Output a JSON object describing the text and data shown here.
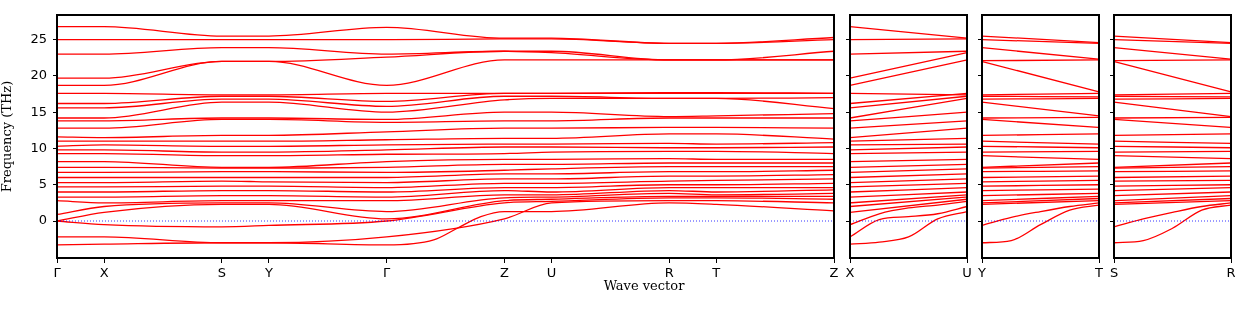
{
  "chart_data": [
    {
      "type": "line",
      "ylabel": "Frequency (THz)",
      "xlabel": "Wave vector",
      "categories": [
        "Γ",
        null,
        "X",
        null,
        null,
        null,
        null,
        "S",
        null,
        "Y",
        null,
        null,
        null,
        null,
        "Γ",
        null,
        null,
        null,
        null,
        "Z",
        null,
        "U",
        null,
        null,
        null,
        null,
        "R",
        null,
        "T",
        null,
        null,
        null,
        null,
        "Z"
      ],
      "ylim": [
        -5.1,
        28.4
      ],
      "yticks": [
        0,
        5,
        10,
        15,
        20,
        25
      ],
      "ref_lines": [
        {
          "axis": "y",
          "value": 0,
          "color": "#0000ff",
          "line_style": "dotted"
        }
      ],
      "series": [
        {
          "color": "#ff0000",
          "values": [
            -3.3,
            null,
            -3.2,
            null,
            null,
            null,
            null,
            -3.0,
            null,
            -3.0,
            null,
            null,
            null,
            null,
            -3.3,
            null,
            -2.6,
            -1.0,
            0.6,
            1.3,
            null,
            1.3,
            null,
            null,
            null,
            null,
            2.5,
            null,
            2.3,
            null,
            null,
            null,
            null,
            1.4
          ]
        },
        {
          "color": "#ff0000",
          "values": [
            -2.2,
            null,
            -2.2,
            null,
            null,
            null,
            null,
            -3.0,
            null,
            -3.0,
            null,
            null,
            null,
            null,
            -2.2,
            null,
            null,
            null,
            null,
            0.3,
            null,
            2.5,
            null,
            null,
            null,
            null,
            2.8,
            null,
            2.8,
            null,
            null,
            null,
            null,
            2.5
          ]
        },
        {
          "color": "#ff0000",
          "values": [
            0,
            null,
            -0.5,
            null,
            null,
            null,
            null,
            -0.8,
            null,
            -0.6,
            null,
            null,
            null,
            null,
            0,
            null,
            null,
            null,
            null,
            2.5,
            null,
            2.7,
            null,
            null,
            null,
            null,
            3.2,
            null,
            3.2,
            null,
            null,
            null,
            null,
            3.0
          ]
        },
        {
          "color": "#ff0000",
          "values": [
            0,
            null,
            1.2,
            null,
            null,
            null,
            null,
            2.3,
            null,
            2.3,
            null,
            null,
            null,
            null,
            0.3,
            null,
            null,
            null,
            null,
            2.8,
            null,
            3.0,
            null,
            null,
            null,
            null,
            3.4,
            null,
            3.4,
            null,
            null,
            null,
            null,
            3.4
          ]
        },
        {
          "color": "#ff0000",
          "values": [
            0.9,
            null,
            2.0,
            null,
            null,
            null,
            null,
            2.5,
            null,
            2.5,
            null,
            null,
            null,
            null,
            1.3,
            null,
            null,
            null,
            null,
            3.2,
            null,
            3.3,
            null,
            null,
            null,
            null,
            3.8,
            null,
            3.6,
            null,
            null,
            null,
            null,
            3.8
          ]
        },
        {
          "color": "#ff0000",
          "values": [
            2.8,
            null,
            2.5,
            null,
            null,
            null,
            null,
            2.8,
            null,
            2.8,
            null,
            null,
            null,
            null,
            2.8,
            null,
            null,
            null,
            null,
            3.6,
            null,
            3.6,
            null,
            null,
            null,
            null,
            4.2,
            null,
            4.0,
            null,
            null,
            null,
            null,
            4.3
          ]
        },
        {
          "color": "#ff0000",
          "values": [
            3.3,
            null,
            3.3,
            null,
            null,
            null,
            null,
            3.5,
            null,
            3.5,
            null,
            null,
            null,
            null,
            3.3,
            null,
            null,
            null,
            null,
            4.2,
            null,
            4.0,
            null,
            null,
            null,
            null,
            4.6,
            null,
            4.6,
            null,
            null,
            null,
            null,
            4.6
          ]
        },
        {
          "color": "#ff0000",
          "values": [
            4.0,
            null,
            4.0,
            null,
            null,
            null,
            null,
            4.2,
            null,
            4.2,
            null,
            null,
            null,
            null,
            4.0,
            null,
            null,
            null,
            null,
            4.6,
            null,
            4.6,
            null,
            null,
            null,
            null,
            5.0,
            null,
            5.0,
            null,
            null,
            null,
            null,
            5.2
          ]
        },
        {
          "color": "#ff0000",
          "values": [
            4.7,
            null,
            4.7,
            null,
            null,
            null,
            null,
            4.8,
            null,
            4.8,
            null,
            null,
            null,
            null,
            4.6,
            null,
            null,
            null,
            null,
            5.2,
            null,
            5.2,
            null,
            null,
            null,
            null,
            5.5,
            null,
            5.6,
            null,
            null,
            null,
            null,
            5.8
          ]
        },
        {
          "color": "#ff0000",
          "values": [
            5.3,
            null,
            5.3,
            null,
            null,
            null,
            null,
            5.5,
            null,
            5.4,
            null,
            null,
            null,
            null,
            5.3,
            null,
            null,
            null,
            null,
            5.8,
            null,
            5.8,
            null,
            null,
            null,
            null,
            6.2,
            null,
            6.2,
            null,
            null,
            null,
            null,
            6.4
          ]
        },
        {
          "color": "#ff0000",
          "values": [
            6.0,
            null,
            6.0,
            null,
            null,
            null,
            null,
            6.0,
            null,
            6.0,
            null,
            null,
            null,
            null,
            6.0,
            null,
            null,
            null,
            null,
            6.5,
            null,
            6.5,
            null,
            null,
            null,
            null,
            6.8,
            null,
            6.8,
            null,
            null,
            null,
            null,
            7.0
          ]
        },
        {
          "color": "#ff0000",
          "values": [
            6.7,
            null,
            6.7,
            null,
            null,
            null,
            null,
            6.8,
            null,
            6.8,
            null,
            null,
            null,
            null,
            6.7,
            null,
            null,
            null,
            null,
            7.0,
            null,
            7.2,
            null,
            null,
            null,
            null,
            7.5,
            null,
            7.5,
            null,
            null,
            null,
            null,
            7.5
          ]
        },
        {
          "color": "#ff0000",
          "values": [
            7.4,
            null,
            7.4,
            null,
            null,
            null,
            null,
            7.3,
            null,
            7.3,
            null,
            null,
            null,
            null,
            7.4,
            null,
            null,
            null,
            null,
            7.8,
            null,
            7.8,
            null,
            null,
            null,
            null,
            8.0,
            null,
            8.0,
            null,
            null,
            null,
            null,
            8.0
          ]
        },
        {
          "color": "#ff0000",
          "values": [
            8.2,
            null,
            8.2,
            null,
            null,
            null,
            null,
            7.4,
            null,
            7.4,
            null,
            null,
            null,
            null,
            8.2,
            null,
            null,
            null,
            null,
            8.5,
            null,
            8.5,
            null,
            null,
            null,
            null,
            8.6,
            null,
            8.5,
            null,
            null,
            null,
            null,
            8.5
          ]
        },
        {
          "color": "#ff0000",
          "values": [
            9.3,
            null,
            9.3,
            null,
            null,
            null,
            null,
            9.0,
            null,
            9.0,
            null,
            null,
            null,
            null,
            9.2,
            null,
            null,
            null,
            null,
            9.3,
            null,
            9.5,
            null,
            null,
            null,
            null,
            9.6,
            null,
            9.6,
            null,
            null,
            null,
            null,
            9.3
          ]
        },
        {
          "color": "#ff0000",
          "values": [
            9.8,
            null,
            9.8,
            null,
            null,
            null,
            null,
            9.5,
            null,
            9.5,
            null,
            null,
            null,
            null,
            9.8,
            null,
            null,
            null,
            null,
            10.2,
            null,
            10.2,
            null,
            null,
            null,
            null,
            10.1,
            null,
            10.1,
            null,
            null,
            null,
            null,
            10.2
          ]
        },
        {
          "color": "#ff0000",
          "values": [
            10.3,
            null,
            10.5,
            null,
            null,
            null,
            null,
            10.3,
            null,
            10.3,
            null,
            null,
            null,
            null,
            10.5,
            null,
            null,
            null,
            null,
            10.6,
            null,
            10.6,
            null,
            null,
            null,
            null,
            10.7,
            null,
            10.6,
            null,
            null,
            null,
            null,
            10.8
          ]
        },
        {
          "color": "#ff0000",
          "values": [
            11.0,
            null,
            11.0,
            null,
            null,
            null,
            null,
            11.0,
            null,
            11.0,
            null,
            null,
            null,
            null,
            11.2,
            null,
            null,
            null,
            null,
            11.4,
            null,
            11.4,
            null,
            null,
            null,
            null,
            12.0,
            null,
            12.0,
            null,
            null,
            null,
            null,
            11.3
          ]
        },
        {
          "color": "#ff0000",
          "values": [
            11.6,
            null,
            11.5,
            null,
            null,
            null,
            null,
            11.8,
            null,
            11.8,
            null,
            null,
            null,
            null,
            12.3,
            null,
            null,
            null,
            null,
            12.8,
            null,
            12.8,
            null,
            null,
            null,
            null,
            12.9,
            null,
            12.9,
            null,
            null,
            null,
            null,
            12.8
          ]
        },
        {
          "color": "#ff0000",
          "values": [
            12.8,
            null,
            12.8,
            null,
            null,
            null,
            null,
            14.0,
            null,
            14.0,
            null,
            null,
            null,
            null,
            13.6,
            null,
            null,
            null,
            null,
            13.8,
            null,
            13.8,
            null,
            null,
            null,
            null,
            14.2,
            null,
            14.2,
            null,
            null,
            null,
            null,
            14.2
          ]
        },
        {
          "color": "#ff0000",
          "values": [
            13.8,
            null,
            13.8,
            null,
            null,
            null,
            null,
            14.2,
            null,
            14.2,
            null,
            null,
            null,
            null,
            14.0,
            null,
            null,
            null,
            null,
            15.0,
            null,
            15.0,
            null,
            null,
            null,
            null,
            14.4,
            null,
            14.5,
            null,
            null,
            null,
            null,
            14.8
          ]
        },
        {
          "color": "#ff0000",
          "values": [
            14.2,
            null,
            14.2,
            null,
            null,
            null,
            null,
            16.4,
            null,
            16.4,
            null,
            null,
            null,
            null,
            15.0,
            null,
            null,
            null,
            null,
            16.7,
            null,
            16.9,
            null,
            null,
            null,
            null,
            16.9,
            null,
            16.9,
            null,
            null,
            null,
            null,
            15.5
          ]
        },
        {
          "color": "#ff0000",
          "values": [
            15.6,
            null,
            15.6,
            null,
            null,
            null,
            null,
            16.8,
            null,
            16.8,
            null,
            null,
            null,
            null,
            15.8,
            null,
            null,
            null,
            null,
            17.2,
            null,
            17.2,
            null,
            null,
            null,
            null,
            16.9,
            null,
            16.9,
            null,
            null,
            null,
            null,
            17.0
          ]
        },
        {
          "color": "#ff0000",
          "values": [
            16.2,
            null,
            16.2,
            null,
            null,
            null,
            null,
            17.2,
            null,
            17.2,
            null,
            null,
            null,
            null,
            16.5,
            null,
            null,
            null,
            null,
            17.6,
            null,
            17.6,
            null,
            null,
            null,
            null,
            17.6,
            null,
            17.6,
            null,
            null,
            null,
            null,
            17.6
          ]
        },
        {
          "color": "#ff0000",
          "values": [
            17.6,
            null,
            17.6,
            null,
            null,
            null,
            null,
            17.4,
            null,
            17.4,
            null,
            null,
            null,
            null,
            17.6,
            null,
            null,
            null,
            null,
            17.6,
            null,
            17.6,
            null,
            null,
            null,
            null,
            17.7,
            null,
            17.7,
            null,
            null,
            null,
            null,
            17.6
          ]
        },
        {
          "color": "#ff0000",
          "values": [
            18.7,
            null,
            18.7,
            null,
            null,
            null,
            null,
            22.0,
            null,
            22.0,
            null,
            null,
            null,
            null,
            18.7,
            null,
            null,
            null,
            null,
            22.2,
            null,
            22.2,
            null,
            null,
            null,
            null,
            22.2,
            null,
            22.2,
            null,
            null,
            null,
            null,
            22.2
          ]
        },
        {
          "color": "#ff0000",
          "values": [
            19.7,
            null,
            19.7,
            null,
            null,
            null,
            null,
            22.0,
            null,
            22.0,
            null,
            null,
            null,
            null,
            22.6,
            null,
            null,
            null,
            null,
            23.4,
            null,
            23.2,
            null,
            null,
            null,
            null,
            22.2,
            null,
            22.2,
            null,
            null,
            null,
            null,
            23.4
          ]
        },
        {
          "color": "#ff0000",
          "values": [
            23.0,
            null,
            23.0,
            null,
            null,
            null,
            null,
            23.9,
            null,
            23.9,
            null,
            null,
            null,
            null,
            23.0,
            null,
            null,
            null,
            null,
            23.4,
            null,
            23.4,
            null,
            null,
            null,
            null,
            22.2,
            null,
            22.2,
            null,
            null,
            null,
            null,
            22.2
          ]
        },
        {
          "color": "#ff0000",
          "values": [
            25.0,
            null,
            25.0,
            null,
            null,
            null,
            null,
            25.0,
            null,
            25.0,
            null,
            null,
            null,
            null,
            25.0,
            null,
            null,
            null,
            null,
            25.1,
            null,
            25.1,
            null,
            null,
            null,
            null,
            24.5,
            null,
            24.5,
            null,
            null,
            null,
            null,
            25.0
          ]
        },
        {
          "color": "#ff0000",
          "values": [
            26.8,
            null,
            26.8,
            null,
            null,
            null,
            null,
            25.5,
            null,
            25.5,
            null,
            null,
            null,
            null,
            26.7,
            null,
            null,
            null,
            null,
            25.2,
            null,
            25.2,
            null,
            null,
            null,
            null,
            24.5,
            null,
            24.5,
            null,
            null,
            null,
            null,
            25.3
          ]
        }
      ]
    },
    {
      "type": "line",
      "tick_labels": "x",
      "categories": [
        "X",
        null,
        null,
        null,
        "U"
      ],
      "ylim": [
        -5.1,
        28.4
      ],
      "yticks": [
        0,
        5,
        10,
        15,
        20,
        25
      ],
      "ref_lines": [
        {
          "axis": "y",
          "value": 0,
          "color": "#0000ff",
          "line_style": "dotted"
        }
      ],
      "series": [
        {
          "color": "#ff0000",
          "values": [
            -3.2,
            -2.9,
            -2.2,
            0.3,
            1.3
          ]
        },
        {
          "color": "#ff0000",
          "values": [
            -2.2,
            0.2,
            0.6,
            1.0,
            2.0
          ]
        },
        {
          "color": "#ff0000",
          "values": [
            -0.5,
            1.0,
            1.8,
            2.2,
            2.7
          ]
        },
        {
          "color": "#ff0000",
          "values": [
            1.2,
            null,
            null,
            null,
            3.0
          ]
        },
        {
          "color": "#ff0000",
          "values": [
            2.0,
            null,
            null,
            null,
            3.3
          ]
        },
        {
          "color": "#ff0000",
          "values": [
            2.5,
            null,
            null,
            null,
            3.6
          ]
        },
        {
          "color": "#ff0000",
          "values": [
            3.3,
            null,
            null,
            null,
            4.0
          ]
        },
        {
          "color": "#ff0000",
          "values": [
            4.0,
            null,
            null,
            null,
            4.6
          ]
        },
        {
          "color": "#ff0000",
          "values": [
            4.7,
            null,
            null,
            null,
            5.2
          ]
        },
        {
          "color": "#ff0000",
          "values": [
            5.3,
            null,
            null,
            null,
            5.8
          ]
        },
        {
          "color": "#ff0000",
          "values": [
            6.0,
            null,
            null,
            null,
            6.5
          ]
        },
        {
          "color": "#ff0000",
          "values": [
            6.7,
            null,
            null,
            null,
            7.2
          ]
        },
        {
          "color": "#ff0000",
          "values": [
            7.4,
            null,
            null,
            null,
            7.8
          ]
        },
        {
          "color": "#ff0000",
          "values": [
            8.2,
            null,
            null,
            null,
            8.5
          ]
        },
        {
          "color": "#ff0000",
          "values": [
            9.3,
            null,
            null,
            null,
            9.5
          ]
        },
        {
          "color": "#ff0000",
          "values": [
            9.8,
            null,
            null,
            null,
            10.2
          ]
        },
        {
          "color": "#ff0000",
          "values": [
            10.5,
            null,
            null,
            null,
            10.6
          ]
        },
        {
          "color": "#ff0000",
          "values": [
            11.0,
            null,
            null,
            null,
            11.4
          ]
        },
        {
          "color": "#ff0000",
          "values": [
            11.5,
            null,
            null,
            null,
            12.8
          ]
        },
        {
          "color": "#ff0000",
          "values": [
            12.8,
            null,
            null,
            null,
            13.8
          ]
        },
        {
          "color": "#ff0000",
          "values": [
            13.8,
            null,
            null,
            null,
            15.0
          ]
        },
        {
          "color": "#ff0000",
          "values": [
            14.2,
            null,
            null,
            null,
            16.9
          ]
        },
        {
          "color": "#ff0000",
          "values": [
            15.6,
            null,
            null,
            null,
            17.2
          ]
        },
        {
          "color": "#ff0000",
          "values": [
            16.2,
            null,
            null,
            null,
            17.6
          ]
        },
        {
          "color": "#ff0000",
          "values": [
            17.6,
            null,
            null,
            null,
            17.4
          ]
        },
        {
          "color": "#ff0000",
          "values": [
            18.7,
            null,
            null,
            null,
            22.2
          ]
        },
        {
          "color": "#ff0000",
          "values": [
            19.7,
            null,
            null,
            null,
            23.2
          ]
        },
        {
          "color": "#ff0000",
          "values": [
            23.0,
            null,
            null,
            null,
            23.4
          ]
        },
        {
          "color": "#ff0000",
          "values": [
            25.0,
            null,
            null,
            null,
            25.1
          ]
        },
        {
          "color": "#ff0000",
          "values": [
            26.8,
            null,
            null,
            null,
            25.2
          ]
        }
      ]
    },
    {
      "type": "line",
      "tick_labels": "x",
      "categories": [
        "Y",
        null,
        null,
        null,
        "T"
      ],
      "ylim": [
        -5.1,
        28.4
      ],
      "yticks": [
        0,
        5,
        10,
        15,
        20,
        25
      ],
      "ref_lines": [
        {
          "axis": "y",
          "value": 0,
          "color": "#0000ff",
          "line_style": "dotted"
        }
      ],
      "series": [
        {
          "color": "#ff0000",
          "values": [
            -3.0,
            -2.7,
            -0.5,
            1.5,
            2.2
          ]
        },
        {
          "color": "#ff0000",
          "values": [
            -0.6,
            0.5,
            1.3,
            2.0,
            2.5
          ]
        },
        {
          "color": "#ff0000",
          "values": [
            2.3,
            null,
            null,
            null,
            2.8
          ]
        },
        {
          "color": "#ff0000",
          "values": [
            2.5,
            null,
            null,
            null,
            3.1
          ]
        },
        {
          "color": "#ff0000",
          "values": [
            2.8,
            null,
            null,
            null,
            3.4
          ]
        },
        {
          "color": "#ff0000",
          "values": [
            3.5,
            null,
            null,
            null,
            3.8
          ]
        },
        {
          "color": "#ff0000",
          "values": [
            4.2,
            null,
            null,
            null,
            4.4
          ]
        },
        {
          "color": "#ff0000",
          "values": [
            4.8,
            null,
            null,
            null,
            5.0
          ]
        },
        {
          "color": "#ff0000",
          "values": [
            5.4,
            null,
            null,
            null,
            5.6
          ]
        },
        {
          "color": "#ff0000",
          "values": [
            6.0,
            null,
            null,
            null,
            6.2
          ]
        },
        {
          "color": "#ff0000",
          "values": [
            6.8,
            null,
            null,
            null,
            6.9
          ]
        },
        {
          "color": "#ff0000",
          "values": [
            7.3,
            null,
            null,
            null,
            7.5
          ]
        },
        {
          "color": "#ff0000",
          "values": [
            7.4,
            null,
            null,
            null,
            8.0
          ]
        },
        {
          "color": "#ff0000",
          "values": [
            9.0,
            null,
            null,
            null,
            8.5
          ]
        },
        {
          "color": "#ff0000",
          "values": [
            9.5,
            null,
            null,
            null,
            9.6
          ]
        },
        {
          "color": "#ff0000",
          "values": [
            10.3,
            null,
            null,
            null,
            10.1
          ]
        },
        {
          "color": "#ff0000",
          "values": [
            11.0,
            null,
            null,
            null,
            10.6
          ]
        },
        {
          "color": "#ff0000",
          "values": [
            11.8,
            null,
            null,
            null,
            12.0
          ]
        },
        {
          "color": "#ff0000",
          "values": [
            14.0,
            null,
            null,
            null,
            12.9
          ]
        },
        {
          "color": "#ff0000",
          "values": [
            14.2,
            null,
            null,
            null,
            14.3
          ]
        },
        {
          "color": "#ff0000",
          "values": [
            16.4,
            null,
            null,
            null,
            14.5
          ]
        },
        {
          "color": "#ff0000",
          "values": [
            16.8,
            null,
            null,
            null,
            16.9
          ]
        },
        {
          "color": "#ff0000",
          "values": [
            17.2,
            null,
            null,
            null,
            17.1
          ]
        },
        {
          "color": "#ff0000",
          "values": [
            17.4,
            null,
            null,
            null,
            17.6
          ]
        },
        {
          "color": "#ff0000",
          "values": [
            22.0,
            null,
            null,
            null,
            17.8
          ]
        },
        {
          "color": "#ff0000",
          "values": [
            22.1,
            null,
            null,
            null,
            22.2
          ]
        },
        {
          "color": "#ff0000",
          "values": [
            23.9,
            null,
            null,
            null,
            22.3
          ]
        },
        {
          "color": "#ff0000",
          "values": [
            25.0,
            null,
            null,
            null,
            24.5
          ]
        },
        {
          "color": "#ff0000",
          "values": [
            25.5,
            null,
            null,
            null,
            24.6
          ]
        }
      ]
    },
    {
      "type": "line",
      "tick_labels": "x",
      "categories": [
        "S",
        null,
        null,
        null,
        "R"
      ],
      "ylim": [
        -5.1,
        28.4
      ],
      "yticks": [
        0,
        5,
        10,
        15,
        20,
        25
      ],
      "ref_lines": [
        {
          "axis": "y",
          "value": 0,
          "color": "#0000ff",
          "line_style": "dotted"
        }
      ],
      "series": [
        {
          "color": "#ff0000",
          "values": [
            -3.0,
            -2.7,
            -1.0,
            1.5,
            2.2
          ]
        },
        {
          "color": "#ff0000",
          "values": [
            -0.8,
            0.3,
            1.2,
            2.0,
            2.5
          ]
        },
        {
          "color": "#ff0000",
          "values": [
            2.3,
            null,
            null,
            null,
            2.8
          ]
        },
        {
          "color": "#ff0000",
          "values": [
            2.5,
            null,
            null,
            null,
            3.1
          ]
        },
        {
          "color": "#ff0000",
          "values": [
            2.8,
            null,
            null,
            null,
            3.5
          ]
        },
        {
          "color": "#ff0000",
          "values": [
            3.5,
            null,
            null,
            null,
            4.0
          ]
        },
        {
          "color": "#ff0000",
          "values": [
            4.2,
            null,
            null,
            null,
            4.6
          ]
        },
        {
          "color": "#ff0000",
          "values": [
            4.8,
            null,
            null,
            null,
            5.0
          ]
        },
        {
          "color": "#ff0000",
          "values": [
            5.5,
            null,
            null,
            null,
            5.6
          ]
        },
        {
          "color": "#ff0000",
          "values": [
            6.0,
            null,
            null,
            null,
            6.2
          ]
        },
        {
          "color": "#ff0000",
          "values": [
            6.8,
            null,
            null,
            null,
            6.9
          ]
        },
        {
          "color": "#ff0000",
          "values": [
            7.3,
            null,
            null,
            null,
            7.5
          ]
        },
        {
          "color": "#ff0000",
          "values": [
            7.4,
            null,
            null,
            null,
            8.0
          ]
        },
        {
          "color": "#ff0000",
          "values": [
            9.0,
            null,
            null,
            null,
            8.6
          ]
        },
        {
          "color": "#ff0000",
          "values": [
            9.5,
            null,
            null,
            null,
            9.6
          ]
        },
        {
          "color": "#ff0000",
          "values": [
            10.3,
            null,
            null,
            null,
            10.1
          ]
        },
        {
          "color": "#ff0000",
          "values": [
            11.0,
            null,
            null,
            null,
            10.7
          ]
        },
        {
          "color": "#ff0000",
          "values": [
            11.8,
            null,
            null,
            null,
            12.0
          ]
        },
        {
          "color": "#ff0000",
          "values": [
            14.0,
            null,
            null,
            null,
            12.9
          ]
        },
        {
          "color": "#ff0000",
          "values": [
            14.2,
            null,
            null,
            null,
            14.3
          ]
        },
        {
          "color": "#ff0000",
          "values": [
            16.4,
            null,
            null,
            null,
            14.4
          ]
        },
        {
          "color": "#ff0000",
          "values": [
            16.8,
            null,
            null,
            null,
            16.9
          ]
        },
        {
          "color": "#ff0000",
          "values": [
            17.2,
            null,
            null,
            null,
            17.1
          ]
        },
        {
          "color": "#ff0000",
          "values": [
            17.4,
            null,
            null,
            null,
            17.6
          ]
        },
        {
          "color": "#ff0000",
          "values": [
            22.0,
            null,
            null,
            null,
            17.8
          ]
        },
        {
          "color": "#ff0000",
          "values": [
            22.1,
            null,
            null,
            null,
            22.2
          ]
        },
        {
          "color": "#ff0000",
          "values": [
            23.9,
            null,
            null,
            null,
            22.3
          ]
        },
        {
          "color": "#ff0000",
          "values": [
            25.0,
            null,
            null,
            null,
            24.5
          ]
        },
        {
          "color": "#ff0000",
          "values": [
            25.5,
            null,
            null,
            null,
            24.6
          ]
        }
      ]
    }
  ]
}
